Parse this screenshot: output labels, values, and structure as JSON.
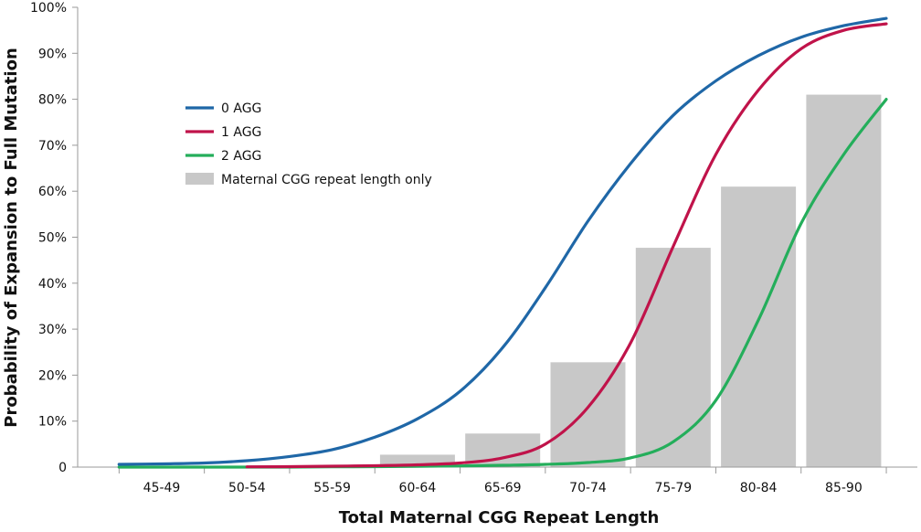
{
  "chart_data": {
    "type": "bar+line",
    "title": "",
    "xlabel": "Total Maternal CGG Repeat Length",
    "ylabel": "Probability of Expansion to Full Mutation",
    "ylim": [
      0,
      100
    ],
    "y_ticks": [
      0,
      10,
      20,
      30,
      40,
      50,
      60,
      70,
      80,
      90,
      100
    ],
    "y_tick_labels": [
      "0",
      "10%",
      "20%",
      "30%",
      "40%",
      "50%",
      "60%",
      "70%",
      "80%",
      "90%",
      "100%"
    ],
    "categories": [
      "45-49",
      "50-54",
      "55-59",
      "60-64",
      "65-69",
      "70-74",
      "75-79",
      "80-84",
      "85-90"
    ],
    "grid": false,
    "legend_position": "upper-left inside plot",
    "bars": {
      "name": "Maternal CGG repeat length only",
      "color": "#c8c8c8",
      "values": [
        0,
        0,
        0,
        2.7,
        7.3,
        22.8,
        47.7,
        61.0,
        81.0
      ]
    },
    "series": [
      {
        "name": "0 AGG",
        "color": "#1f67a7",
        "x": [
          -0.5,
          0,
          0.5,
          1,
          1.5,
          2,
          2.5,
          3,
          3.5,
          4,
          4.5,
          5,
          5.5,
          6,
          6.5,
          7,
          7.5,
          8,
          8.5
        ],
        "y": [
          0.6,
          0.7,
          0.9,
          1.4,
          2.3,
          3.8,
          6.5,
          10.5,
          16.5,
          26,
          39,
          53.5,
          66,
          76.5,
          84,
          89.5,
          93.5,
          96,
          97.6
        ]
      },
      {
        "name": "1 AGG",
        "color": "#c0134a",
        "x": [
          1,
          1.5,
          2,
          2.5,
          3,
          3.5,
          4,
          4.5,
          5,
          5.5,
          6,
          6.5,
          7,
          7.5,
          8,
          8.5
        ],
        "y": [
          0.05,
          0.1,
          0.2,
          0.3,
          0.5,
          0.9,
          2.0,
          5.0,
          13.0,
          27.0,
          48.0,
          68.0,
          82.0,
          91.0,
          95.0,
          96.4
        ]
      },
      {
        "name": "2 AGG",
        "color": "#24ae5b",
        "x": [
          -0.5,
          0,
          0.5,
          1,
          1.5,
          2,
          2.5,
          3,
          3.5,
          4,
          4.5,
          5,
          5.5,
          6,
          6.5,
          7,
          7.5,
          8,
          8.5
        ],
        "y": [
          0,
          0,
          0,
          0,
          0,
          0.05,
          0.1,
          0.15,
          0.25,
          0.4,
          0.6,
          1.0,
          2.0,
          5.5,
          14.5,
          32.0,
          53.0,
          68.0,
          80.0
        ]
      }
    ]
  }
}
